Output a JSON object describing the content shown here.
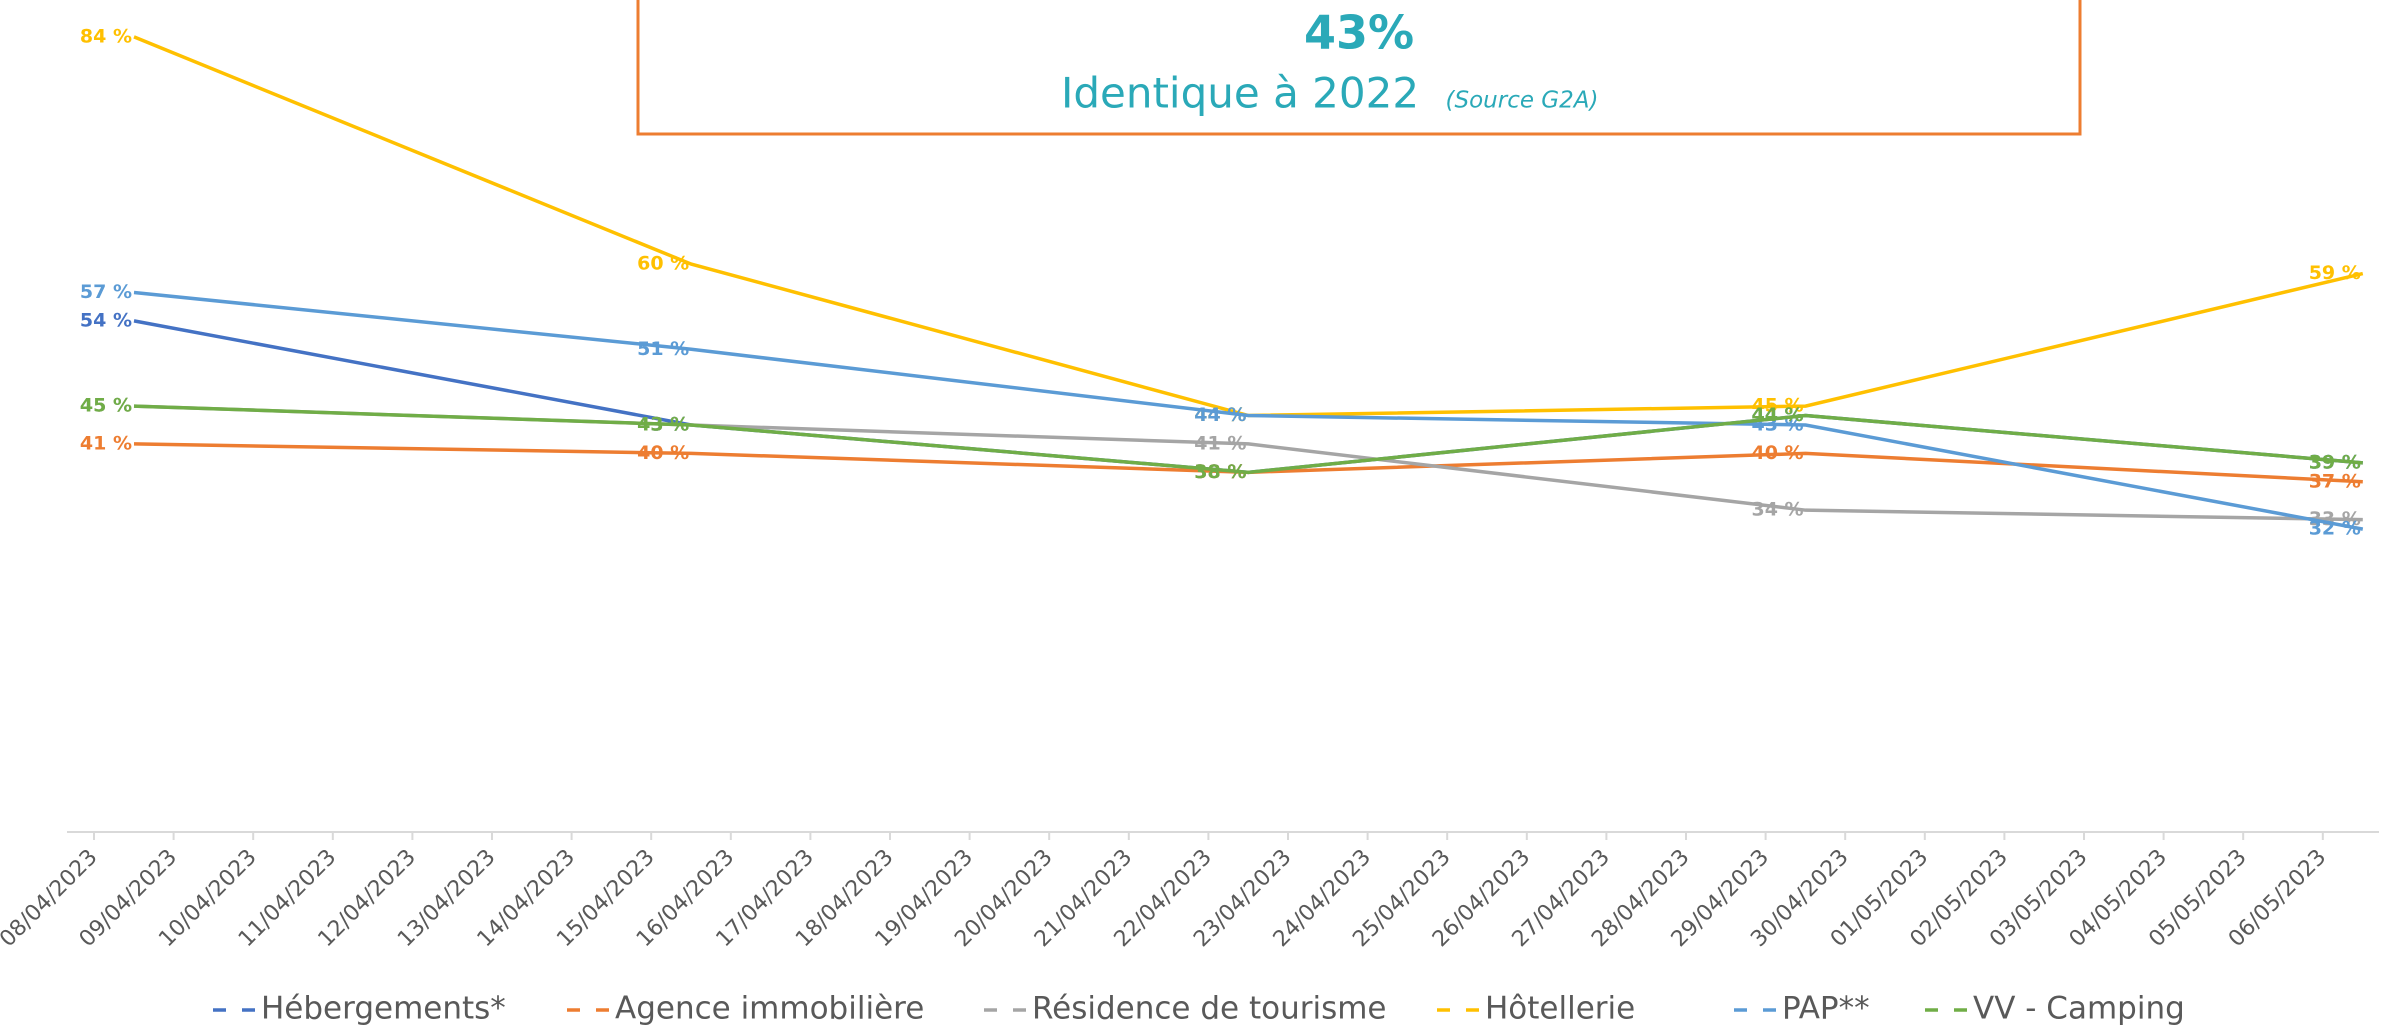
{
  "chart_data": {
    "type": "line",
    "headline": "43%",
    "subtitle": "Identique à 2022",
    "source": "(Source G2A)",
    "categories": [
      "08/04/2023",
      "09/04/2023",
      "10/04/2023",
      "11/04/2023",
      "12/04/2023",
      "13/04/2023",
      "14/04/2023",
      "15/04/2023",
      "16/04/2023",
      "17/04/2023",
      "18/04/2023",
      "19/04/2023",
      "20/04/2023",
      "21/04/2023",
      "22/04/2023",
      "23/04/2023",
      "24/04/2023",
      "25/04/2023",
      "26/04/2023",
      "27/04/2023",
      "28/04/2023",
      "29/04/2023",
      "30/04/2023",
      "01/05/2023",
      "02/05/2023",
      "03/05/2023",
      "04/05/2023",
      "05/05/2023",
      "06/05/2023"
    ],
    "connect_gaps": true,
    "ylim": [
      0,
      86
    ],
    "legend": "bottom",
    "series": [
      {
        "name": "Hébergements*",
        "color": "#4472c4",
        "values": [
          54,
          null,
          null,
          null,
          null,
          null,
          null,
          43,
          null,
          null,
          null,
          null,
          null,
          null,
          38,
          null,
          null,
          null,
          null,
          null,
          null,
          44,
          null,
          null,
          null,
          null,
          null,
          null,
          39
        ],
        "value_labels": [
          "54 %",
          null,
          null,
          null,
          null,
          null,
          null,
          "43 %",
          null,
          null,
          null,
          null,
          null,
          null,
          "38 %",
          null,
          null,
          null,
          null,
          null,
          null,
          "44 %",
          null,
          null,
          null,
          null,
          null,
          null,
          "39 %"
        ]
      },
      {
        "name": "Agence immobilière",
        "color": "#ed7d31",
        "values": [
          41,
          null,
          null,
          null,
          null,
          null,
          null,
          40,
          null,
          null,
          null,
          null,
          null,
          null,
          38,
          null,
          null,
          null,
          null,
          null,
          null,
          40,
          null,
          null,
          null,
          null,
          null,
          null,
          37
        ],
        "value_labels": [
          "41 %",
          null,
          null,
          null,
          null,
          null,
          null,
          "40 %",
          null,
          null,
          null,
          null,
          null,
          null,
          "38 %",
          null,
          null,
          null,
          null,
          null,
          null,
          "40 %",
          null,
          null,
          null,
          null,
          null,
          null,
          "37 %"
        ]
      },
      {
        "name": "Résidence de tourisme",
        "color": "#a5a5a5",
        "values": [
          45,
          null,
          null,
          null,
          null,
          null,
          null,
          43,
          null,
          null,
          null,
          null,
          null,
          null,
          41,
          null,
          null,
          null,
          null,
          null,
          null,
          34,
          null,
          null,
          null,
          null,
          null,
          null,
          33
        ],
        "value_labels": [
          "45 %",
          null,
          null,
          null,
          null,
          null,
          null,
          "43 %",
          null,
          null,
          null,
          null,
          null,
          null,
          "41 %",
          null,
          null,
          null,
          null,
          null,
          null,
          "34 %",
          null,
          null,
          null,
          null,
          null,
          null,
          "33 %"
        ]
      },
      {
        "name": "Hôtellerie",
        "color": "#ffc000",
        "values": [
          84,
          null,
          null,
          null,
          null,
          null,
          null,
          60,
          null,
          null,
          null,
          null,
          null,
          null,
          44,
          null,
          null,
          null,
          null,
          null,
          null,
          45,
          null,
          null,
          null,
          null,
          null,
          null,
          59
        ],
        "value_labels": [
          "84 %",
          null,
          null,
          null,
          null,
          null,
          null,
          "60 %",
          null,
          null,
          null,
          null,
          null,
          null,
          "44 %",
          null,
          null,
          null,
          null,
          null,
          null,
          "45 %",
          null,
          null,
          null,
          null,
          null,
          null,
          "59 %"
        ]
      },
      {
        "name": "PAP**",
        "color": "#5b9bd5",
        "values": [
          57,
          null,
          null,
          null,
          null,
          null,
          null,
          51,
          null,
          null,
          null,
          null,
          null,
          null,
          44,
          null,
          null,
          null,
          null,
          null,
          null,
          43,
          null,
          null,
          null,
          null,
          null,
          null,
          32
        ],
        "value_labels": [
          "57 %",
          null,
          null,
          null,
          null,
          null,
          null,
          "51 %",
          null,
          null,
          null,
          null,
          null,
          null,
          "44 %",
          null,
          null,
          null,
          null,
          null,
          null,
          "43 %",
          null,
          null,
          null,
          null,
          null,
          null,
          "32 %"
        ]
      },
      {
        "name": "VV - Camping",
        "color": "#70ad47",
        "values": [
          45,
          null,
          null,
          null,
          null,
          null,
          null,
          43,
          null,
          null,
          null,
          null,
          null,
          null,
          38,
          null,
          null,
          null,
          null,
          null,
          null,
          44,
          null,
          null,
          null,
          null,
          null,
          null,
          39
        ],
        "value_labels": [
          "45 %",
          null,
          null,
          null,
          null,
          null,
          null,
          "43 %",
          null,
          null,
          null,
          null,
          null,
          null,
          "38 %",
          null,
          null,
          null,
          null,
          null,
          null,
          "44 %",
          null,
          null,
          null,
          null,
          null,
          null,
          "39 %"
        ]
      }
    ]
  }
}
